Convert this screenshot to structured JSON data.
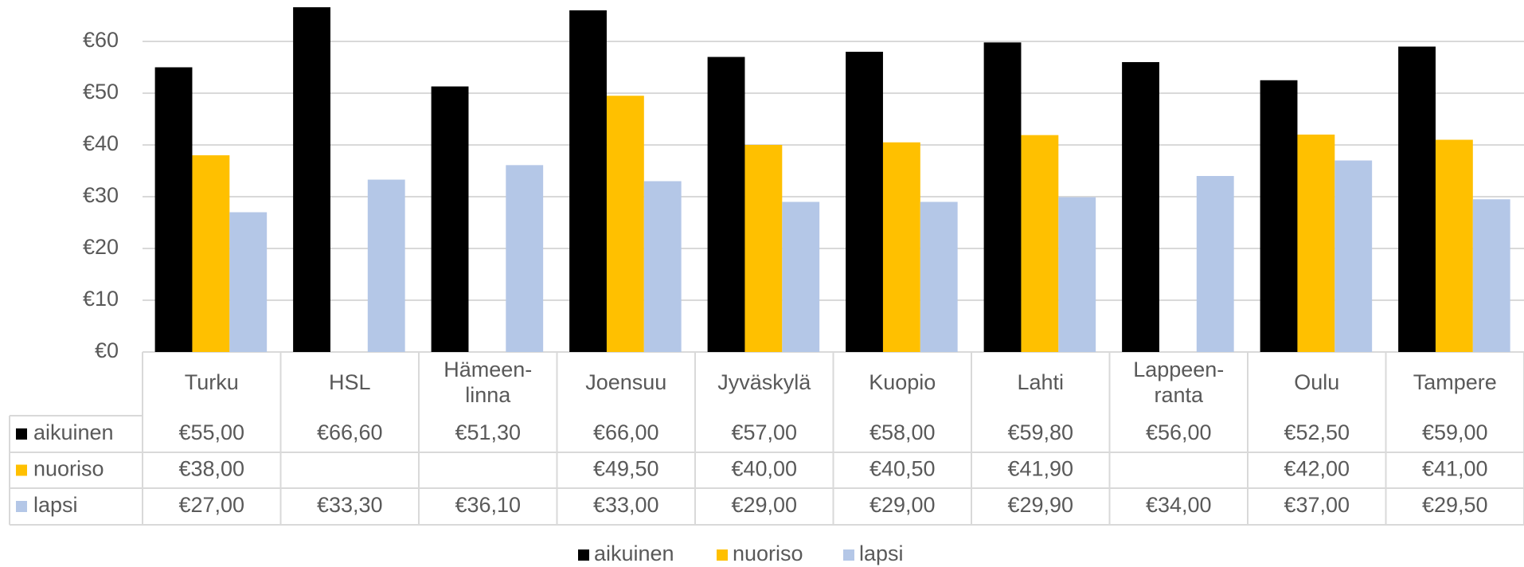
{
  "chart_data": {
    "type": "bar",
    "categories": [
      "Turku",
      "HSL",
      "Hämeen-\nlinna",
      "Joensuu",
      "Jyväskylä",
      "Kuopio",
      "Lahti",
      "Lappeen-\nranta",
      "Oulu",
      "Tampere"
    ],
    "series": [
      {
        "name": "aikuinen",
        "color": "#000000",
        "values": [
          55.0,
          66.6,
          51.3,
          66.0,
          57.0,
          58.0,
          59.8,
          56.0,
          52.5,
          59.0
        ],
        "value_labels": [
          "€55,00",
          "€66,60",
          "€51,30",
          "€66,00",
          "€57,00",
          "€58,00",
          "€59,80",
          "€56,00",
          "€52,50",
          "€59,00"
        ]
      },
      {
        "name": "nuoriso",
        "color": "#FFC000",
        "values": [
          38.0,
          null,
          null,
          49.5,
          40.0,
          40.5,
          41.9,
          null,
          42.0,
          41.0
        ],
        "value_labels": [
          "€38,00",
          null,
          null,
          "€49,50",
          "€40,00",
          "€40,50",
          "€41,90",
          null,
          "€42,00",
          "€41,00"
        ]
      },
      {
        "name": "lapsi",
        "color": "#B4C7E7",
        "values": [
          27.0,
          33.3,
          36.1,
          33.0,
          29.0,
          29.0,
          29.9,
          34.0,
          37.0,
          29.5
        ],
        "value_labels": [
          "€27,00",
          "€33,30",
          "€36,10",
          "€33,00",
          "€29,00",
          "€29,00",
          "€29,90",
          "€34,00",
          "€37,00",
          "€29,50"
        ]
      }
    ],
    "ylim": [
      0,
      68
    ],
    "yticks": [
      {
        "value": 0,
        "label": "€0"
      },
      {
        "value": 10,
        "label": "€10"
      },
      {
        "value": 20,
        "label": "€20"
      },
      {
        "value": 30,
        "label": "€30"
      },
      {
        "value": 40,
        "label": "€40"
      },
      {
        "value": 50,
        "label": "€50"
      },
      {
        "value": 60,
        "label": "€60"
      }
    ],
    "grid": true,
    "legend": "bottom"
  }
}
